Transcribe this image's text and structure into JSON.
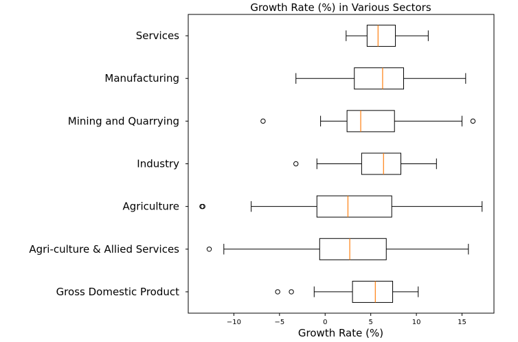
{
  "chart_data": {
    "type": "boxplot",
    "orientation": "horizontal",
    "title": "Growth Rate (%) in Various Sectors",
    "xlabel": "Growth Rate (%)",
    "ylabel": "",
    "xlim": [
      -15,
      18.5
    ],
    "xticks": [
      -10,
      -5,
      0,
      5,
      10,
      15
    ],
    "xtick_labels": [
      "−10",
      "−5",
      "0",
      "5",
      "10",
      "15"
    ],
    "grid": false,
    "median_color": "#ff7f0e",
    "box_color": "#000000",
    "categories": [
      "Gross Domestic Product",
      "Agri-culture & Allied Services",
      "Agriculture",
      "Industry",
      "Mining and Quarrying",
      "Manufacturing",
      "Services"
    ],
    "boxes": [
      {
        "name": "Gross Domestic Product",
        "whislo": -1.2,
        "q1": 3.0,
        "med": 5.5,
        "q3": 7.4,
        "whishi": 10.2,
        "fliers": [
          -5.2,
          -3.7
        ]
      },
      {
        "name": "Agri-culture & Allied Services",
        "whislo": -11.1,
        "q1": -0.6,
        "med": 2.7,
        "q3": 6.7,
        "whishi": 15.7,
        "fliers": [
          -12.7
        ]
      },
      {
        "name": "Agriculture",
        "whislo": -8.1,
        "q1": -0.9,
        "med": 2.5,
        "q3": 7.3,
        "whishi": 17.2,
        "fliers": [
          -13.5,
          -13.4
        ]
      },
      {
        "name": "Industry",
        "whislo": -0.9,
        "q1": 4.0,
        "med": 6.4,
        "q3": 8.3,
        "whishi": 12.2,
        "fliers": [
          -3.2
        ]
      },
      {
        "name": "Mining and Quarrying",
        "whislo": -0.5,
        "q1": 2.4,
        "med": 3.9,
        "q3": 7.6,
        "whishi": 15.0,
        "fliers": [
          -6.8,
          16.2
        ]
      },
      {
        "name": "Manufacturing",
        "whislo": -3.2,
        "q1": 3.2,
        "med": 6.3,
        "q3": 8.6,
        "whishi": 15.4,
        "fliers": []
      },
      {
        "name": "Services",
        "whislo": 2.3,
        "q1": 4.6,
        "med": 5.8,
        "q3": 7.7,
        "whishi": 11.3,
        "fliers": []
      }
    ]
  }
}
